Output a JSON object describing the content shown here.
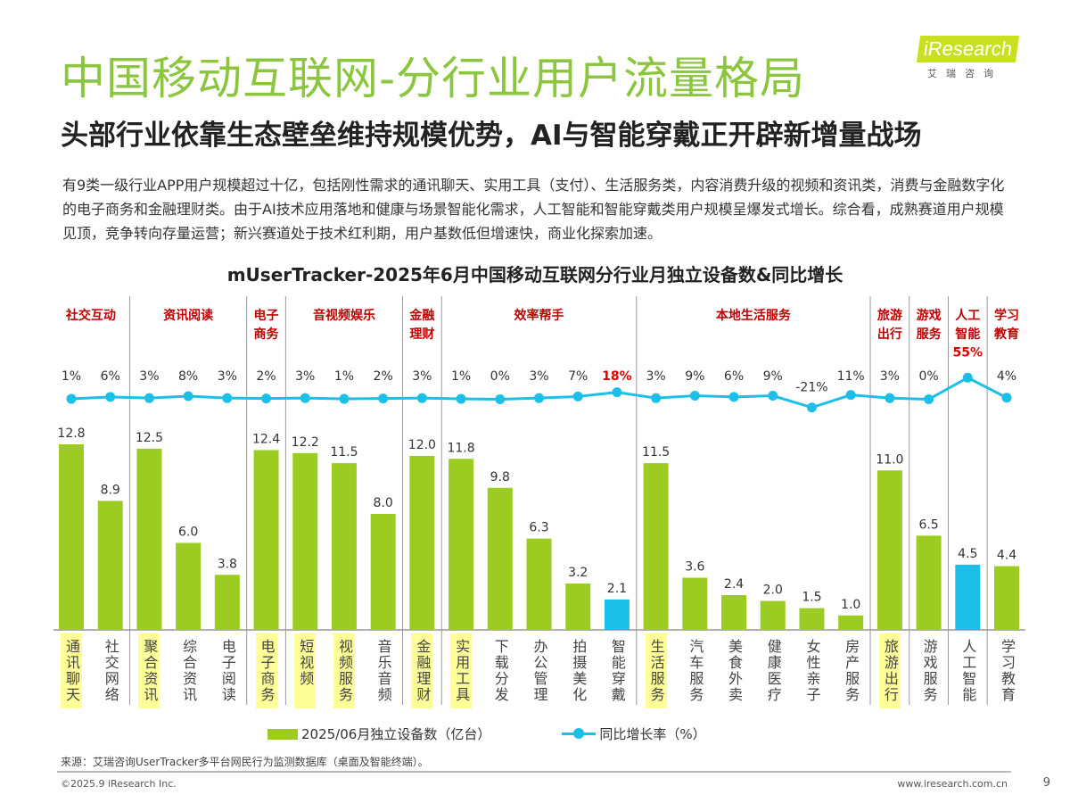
{
  "header": {
    "title": "中国移动互联网-分行业用户流量格局",
    "subtitle": "头部行业依靠生态壁垒维持规模优势，AI与智能穿戴正开辟新增量战场",
    "logo_text": "iResearch",
    "logo_sub": "艾瑞咨询"
  },
  "paragraph": "有9类一级行业APP用户规模超过十亿，包括刚性需求的通讯聊天、实用工具（支付）、生活服务类，内容消费升级的视频和资讯类，消费与金融数字化的电子商务和金融理财类。由于AI技术应用落地和健康与场景智能化需求，人工智能和智能穿戴类用户规模呈爆发式增长。综合看，成熟赛道用户规模见顶，竞争转向存量运营；新兴赛道处于技术红利期，用户基数低但增速快，商业化探索加速。",
  "chart_data": {
    "type": "bar+line",
    "title": "mUserTracker-2025年6月中国移动互联网分行业月独立设备数&同比增长",
    "groups": [
      {
        "label": "社交互动",
        "count": 2
      },
      {
        "label": "资讯阅读",
        "count": 3
      },
      {
        "label": "电子商务",
        "count": 1
      },
      {
        "label": "音视频娱乐",
        "count": 3
      },
      {
        "label": "金融理财",
        "count": 1
      },
      {
        "label": "效率帮手",
        "count": 5
      },
      {
        "label": "本地生活服务",
        "count": 6
      },
      {
        "label": "旅游出行",
        "count": 1
      },
      {
        "label": "游戏服务",
        "count": 1
      },
      {
        "label": "人工智能",
        "count": 1
      },
      {
        "label": "学习教育",
        "count": 1
      }
    ],
    "categories": [
      "通讯聊天",
      "社交网络",
      "聚合资讯",
      "综合资讯",
      "电子阅读",
      "电子商务",
      "短视频",
      "视频服务",
      "音乐音频",
      "金融理财",
      "实用工具",
      "下载分发",
      "办公管理",
      "拍摄美化",
      "智能穿戴",
      "生活服务",
      "汽车服务",
      "美食外卖",
      "健康医疗",
      "女性亲子",
      "房产服务",
      "旅游出行",
      "游戏服务",
      "人工智能",
      "学习教育"
    ],
    "highlighted_categories": [
      "通讯聊天",
      "聚合资讯",
      "电子商务",
      "短视频",
      "视频服务",
      "金融理财",
      "实用工具",
      "生活服务",
      "旅游出行"
    ],
    "emphasized_categories": [
      "智能穿戴",
      "人工智能"
    ],
    "series": [
      {
        "name": "2025/06月独立设备数（亿台）",
        "type": "bar",
        "color": "#9ccb22",
        "emphasis_color": "#1cbfe8",
        "values": [
          12.8,
          8.9,
          12.5,
          6.0,
          3.8,
          12.4,
          12.2,
          11.5,
          8.0,
          12.0,
          11.8,
          9.8,
          6.3,
          3.2,
          2.1,
          11.5,
          3.6,
          2.4,
          2.0,
          1.5,
          1.0,
          11.0,
          6.5,
          4.5,
          4.4
        ]
      },
      {
        "name": "同比增长率（%）",
        "type": "line",
        "color": "#1cbfe8",
        "values": [
          1,
          6,
          3,
          8,
          3,
          2,
          3,
          1,
          2,
          3,
          1,
          0,
          3,
          7,
          18,
          3,
          9,
          6,
          9,
          -21,
          11,
          3,
          0,
          55,
          4
        ]
      }
    ],
    "legend": "bottom",
    "group_label_color": "#c00000",
    "highlight_color": "#ffff99"
  },
  "footer": {
    "source": "来源：艾瑞咨询UserTracker多平台网民行为监测数据库（桌面及智能终端）。",
    "copyright": "©2025.9 iResearch Inc.",
    "site": "www.iresearch.com.cn",
    "page": "9"
  }
}
